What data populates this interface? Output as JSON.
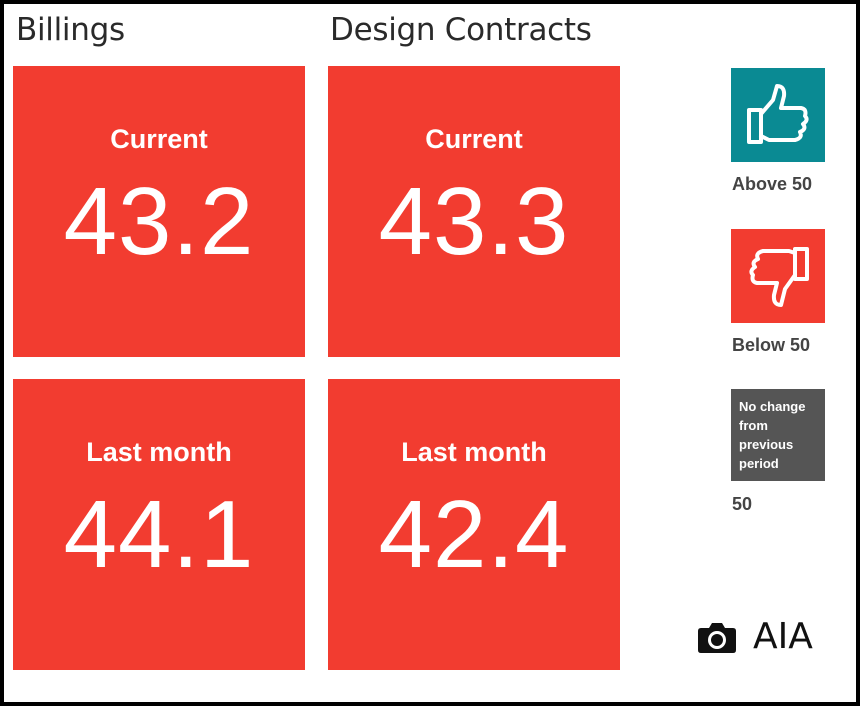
{
  "columns": [
    {
      "title": "Billings",
      "current": {
        "label": "Current",
        "value": "43.2"
      },
      "last_month": {
        "label": "Last month",
        "value": "44.1"
      }
    },
    {
      "title": "Design Contracts",
      "current": {
        "label": "Current",
        "value": "43.3"
      },
      "last_month": {
        "label": "Last month",
        "value": "42.4"
      }
    }
  ],
  "legend": {
    "above": {
      "icon": "thumbs-up-icon",
      "caption": "Above 50",
      "color": "#0a8a93"
    },
    "below": {
      "icon": "thumbs-down-icon",
      "caption": "Below 50",
      "color": "#f23c30"
    },
    "no_change": {
      "text": "No change from previous period",
      "caption": "50",
      "color": "#555555"
    }
  },
  "credit": {
    "icon": "camera-icon",
    "text": "AIA"
  },
  "colors": {
    "tile": "#f23c30",
    "background": "#ffffff",
    "border": "#000000"
  }
}
